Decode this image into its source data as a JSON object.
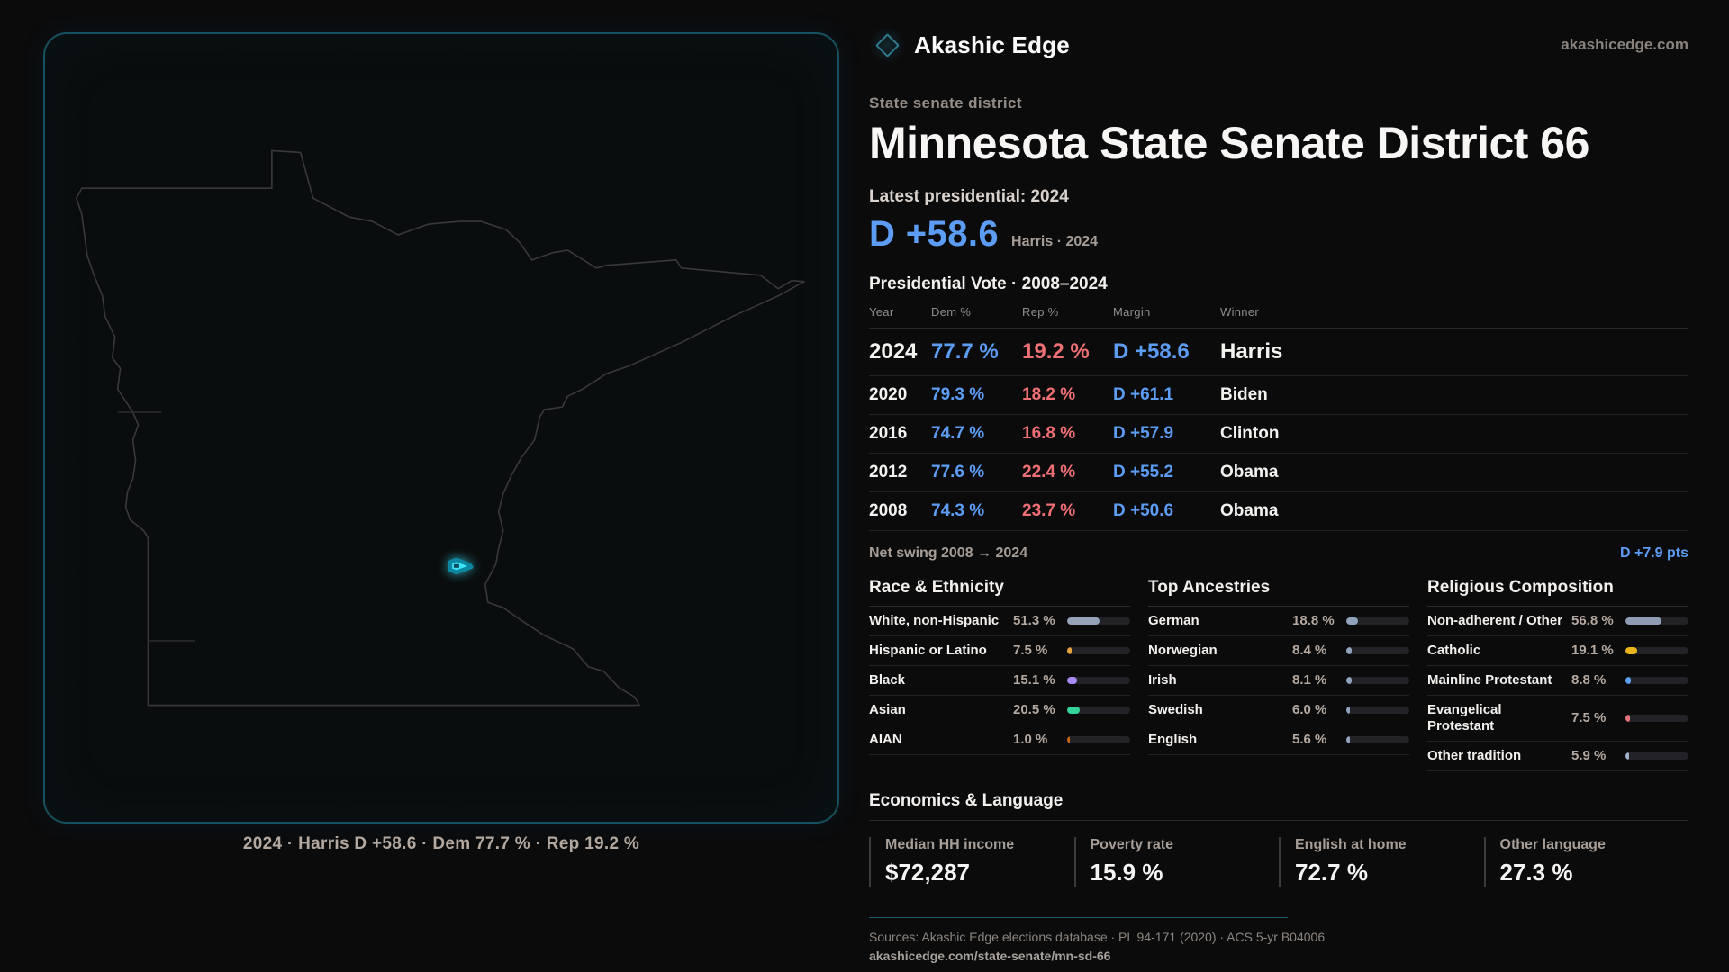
{
  "brand": {
    "name": "Akashic Edge",
    "domain": "akashicedge.com"
  },
  "page": {
    "kicker": "State senate district",
    "title": "Minnesota State Senate District 66",
    "latest_label": "Latest presidential: 2024",
    "margin_value": "D +58.6",
    "margin_sub": "Harris · 2024",
    "table_title": "Presidential Vote · 2008–2024"
  },
  "map": {
    "caption": "2024 · Harris D +58.6 · Dem 77.7 % · Rep 19.2 %",
    "district_color": "#3fe3f7"
  },
  "vote_table": {
    "headers": [
      "Year",
      "Dem %",
      "Rep %",
      "Margin",
      "Winner"
    ],
    "rows": [
      {
        "year": "2024",
        "dem": "77.7 %",
        "rep": "19.2 %",
        "margin": "D +58.6",
        "winner": "Harris",
        "emphasis": true
      },
      {
        "year": "2020",
        "dem": "79.3 %",
        "rep": "18.2 %",
        "margin": "D +61.1",
        "winner": "Biden",
        "emphasis": false
      },
      {
        "year": "2016",
        "dem": "74.7 %",
        "rep": "16.8 %",
        "margin": "D +57.9",
        "winner": "Clinton",
        "emphasis": false
      },
      {
        "year": "2012",
        "dem": "77.6 %",
        "rep": "22.4 %",
        "margin": "D +55.2",
        "winner": "Obama",
        "emphasis": false
      },
      {
        "year": "2008",
        "dem": "74.3 %",
        "rep": "23.7 %",
        "margin": "D +50.6",
        "winner": "Obama",
        "emphasis": false
      }
    ]
  },
  "net_swing": {
    "label": "Net swing 2008 → 2024",
    "value": "D +7.9 pts"
  },
  "demographics": [
    {
      "title": "Race & Ethnicity",
      "items": [
        {
          "label": "White, non-Hispanic",
          "value": "51.3 %",
          "pct": 51.3,
          "color": "#94a3b8"
        },
        {
          "label": "Hispanic or Latino",
          "value": "7.5 %",
          "pct": 7.5,
          "color": "#e6a23c"
        },
        {
          "label": "Black",
          "value": "15.1 %",
          "pct": 15.1,
          "color": "#a78bfa"
        },
        {
          "label": "Asian",
          "value": "20.5 %",
          "pct": 20.5,
          "color": "#34d399"
        },
        {
          "label": "AIAN",
          "value": "1.0 %",
          "pct": 1.0,
          "color": "#c2670f"
        }
      ]
    },
    {
      "title": "Top Ancestries",
      "items": [
        {
          "label": "German",
          "value": "18.8 %",
          "pct": 18.8,
          "color": "#8fa3bd"
        },
        {
          "label": "Norwegian",
          "value": "8.4 %",
          "pct": 8.4,
          "color": "#8fa3bd"
        },
        {
          "label": "Irish",
          "value": "8.1 %",
          "pct": 8.1,
          "color": "#8fa3bd"
        },
        {
          "label": "Swedish",
          "value": "6.0 %",
          "pct": 6.0,
          "color": "#8fa3bd"
        },
        {
          "label": "English",
          "value": "5.6 %",
          "pct": 5.6,
          "color": "#8fa3bd"
        }
      ]
    },
    {
      "title": "Religious Composition",
      "items": [
        {
          "label": "Non-adherent / Other",
          "value": "56.8 %",
          "pct": 56.8,
          "color": "#8e9db3"
        },
        {
          "label": "Catholic",
          "value": "19.1 %",
          "pct": 19.1,
          "color": "#e7b41c"
        },
        {
          "label": "Mainline Protestant",
          "value": "8.8 %",
          "pct": 8.8,
          "color": "#5da0f2"
        },
        {
          "label": "Evangelical Protestant",
          "value": "7.5 %",
          "pct": 7.5,
          "color": "#e8707a"
        },
        {
          "label": "Other tradition",
          "value": "5.9 %",
          "pct": 5.9,
          "color": "#9fb2c8"
        }
      ]
    }
  ],
  "economics": {
    "title": "Economics & Language",
    "stats": [
      {
        "label": "Median HH income",
        "value": "$72,287"
      },
      {
        "label": "Poverty rate",
        "value": "15.9 %"
      },
      {
        "label": "English at home",
        "value": "72.7 %"
      },
      {
        "label": "Other language",
        "value": "27.3 %"
      }
    ]
  },
  "footer": {
    "sources": "Sources: Akashic Edge elections database · PL 94-171 (2020) · ACS 5-yr B04006",
    "link": "akashicedge.com/state-senate/mn-sd-66"
  },
  "colors": {
    "dem": "#5c9cf3",
    "rep": "#ee6f74",
    "accent_teal": "#1d5b68"
  }
}
